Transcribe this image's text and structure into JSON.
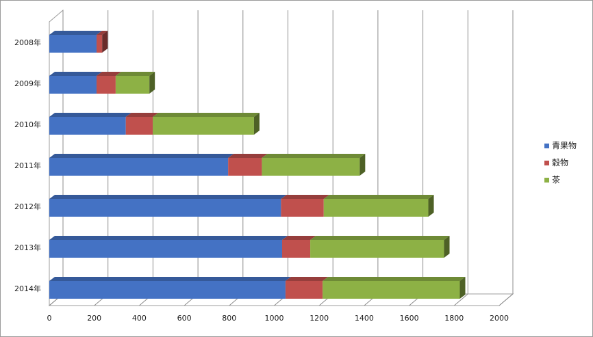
{
  "chart_data": {
    "type": "bar",
    "orientation": "horizontal",
    "stacked": true,
    "three_d": true,
    "categories": [
      "2008年",
      "2009年",
      "2010年",
      "2011年",
      "2012年",
      "2013年",
      "2014年"
    ],
    "series": [
      {
        "name": "青果物",
        "color": "#4472C4",
        "values": [
          210,
          210,
          340,
          795,
          1030,
          1035,
          1050
        ]
      },
      {
        "name": "穀物",
        "color": "#C0504D",
        "values": [
          25,
          85,
          120,
          150,
          190,
          125,
          165
        ]
      },
      {
        "name": "茶",
        "color": "#8DB145",
        "values": [
          0,
          150,
          450,
          435,
          465,
          595,
          610
        ]
      }
    ],
    "xlim": [
      0,
      2000
    ],
    "xticks": [
      "0",
      "200",
      "400",
      "600",
      "800",
      "1000",
      "1200",
      "1400",
      "1600",
      "1800",
      "2000"
    ],
    "grid": true,
    "legend_position": "right"
  }
}
